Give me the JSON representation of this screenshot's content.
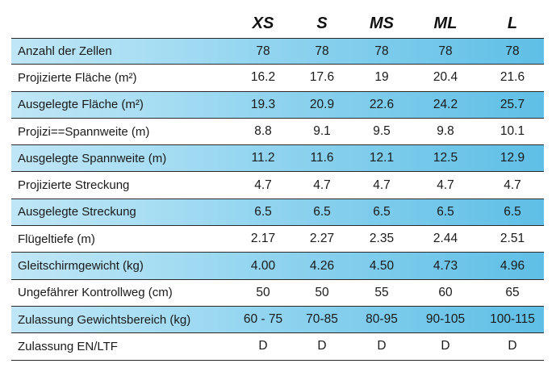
{
  "headers": [
    "XS",
    "S",
    "MS",
    "ML",
    "L"
  ],
  "rows": [
    {
      "label": "Anzahl der Zellen",
      "values": [
        "78",
        "78",
        "78",
        "78",
        "78"
      ],
      "shaded": true
    },
    {
      "label": "Projizierte Fläche (m²)",
      "values": [
        "16.2",
        "17.6",
        "19",
        "20.4",
        "21.6"
      ],
      "shaded": false
    },
    {
      "label": "Ausgelegte Fläche (m²)",
      "values": [
        "19.3",
        "20.9",
        "22.6",
        "24.2",
        "25.7"
      ],
      "shaded": true
    },
    {
      "label": "Projizi==Spannweite (m)",
      "values": [
        "8.8",
        "9.1",
        "9.5",
        "9.8",
        "10.1"
      ],
      "shaded": false
    },
    {
      "label": "Ausgelegte Spannweite (m)",
      "values": [
        "11.2",
        "11.6",
        "12.1",
        "12.5",
        "12.9"
      ],
      "shaded": true
    },
    {
      "label": "Projizierte Streckung",
      "values": [
        "4.7",
        "4.7",
        "4.7",
        "4.7",
        "4.7"
      ],
      "shaded": false
    },
    {
      "label": "Ausgelegte Streckung",
      "values": [
        "6.5",
        "6.5",
        "6.5",
        "6.5",
        "6.5"
      ],
      "shaded": true
    },
    {
      "label": "Flügeltiefe (m)",
      "values": [
        "2.17",
        "2.27",
        "2.35",
        "2.44",
        "2.51"
      ],
      "shaded": false
    },
    {
      "label": "Gleitschirmgewicht (kg)",
      "values": [
        "4.00",
        "4.26",
        "4.50",
        "4.73",
        "4.96"
      ],
      "shaded": true
    },
    {
      "label": "Ungefährer Kontrollweg (cm)",
      "values": [
        "50",
        "50",
        "55",
        "60",
        "65"
      ],
      "shaded": false
    },
    {
      "label": "Zulassung Gewichtsbereich (kg)",
      "values": [
        "60 - 75",
        "70-85",
        "80-95",
        "90-105",
        "100-115"
      ],
      "shaded": true
    },
    {
      "label": "Zulassung EN/LTF",
      "values": [
        "D",
        "D",
        "D",
        "D",
        "D"
      ],
      "shaded": false
    }
  ],
  "colors": {
    "row_shade_light": "#bfe6f6",
    "row_shade_dark": "#5fbfe6",
    "rule": "#2a2a2a"
  }
}
